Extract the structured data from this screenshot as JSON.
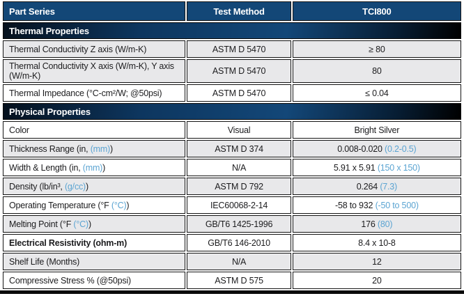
{
  "colors": {
    "header_blue": "#134777",
    "section_bar_blue": "#134778",
    "row_alt_gray": "#e8e8ea",
    "unit_blue": "#5ba4d2",
    "border_black": "#141414"
  },
  "header": {
    "part_series": "Part Series",
    "test_method": "Test Method",
    "product": "TCI800"
  },
  "sections": [
    {
      "title": "Thermal Properties",
      "rows": [
        {
          "p1": "Thermal Conductivity Z axis (W/m-K)",
          "p2": "",
          "p3": "",
          "method": "ASTM D 5470",
          "v1": "≥ 80",
          "v2": ""
        },
        {
          "p1": "Thermal Conductivity X axis (W/m-K), Y axis (W/m-K)",
          "p2": "",
          "p3": "",
          "method": "ASTM D 5470",
          "v1": "80",
          "v2": ""
        },
        {
          "p1": "Thermal Impedance (°C-cm²/W; @50psi)",
          "p2": "",
          "p3": "",
          "method": "ASTM D 5470",
          "v1": "≤ 0.04",
          "v2": ""
        }
      ]
    },
    {
      "title": "Physical Properties",
      "rows": [
        {
          "p1": "Color",
          "p2": "",
          "p3": "",
          "method": "Visual",
          "v1": "Bright Silver",
          "v2": ""
        },
        {
          "p1": "Thickness Range (in, ",
          "p2": "(mm)",
          "p3": ")",
          "method": "ASTM D 374",
          "v1": "0.008-0.020 ",
          "v2": "(0.2-0.5)"
        },
        {
          "p1": "Width & Length (in, ",
          "p2": "(mm)",
          "p3": ")",
          "method": "N/A",
          "v1": "5.91 x 5.91 ",
          "v2": "(150 x 150)"
        },
        {
          "p1": "Density (lb/in³, ",
          "p2": "(g/cc)",
          "p3": ")",
          "method": "ASTM D 792",
          "v1": "0.264 ",
          "v2": "(7.3)"
        },
        {
          "p1": "Operating Temperature (°F ",
          "p2": "(°C)",
          "p3": ")",
          "method": "IEC60068-2-14",
          "v1": "-58 to 932 ",
          "v2": "(-50 to 500)"
        },
        {
          "p1": "Melting Point (°F ",
          "p2": "(°C)",
          "p3": ")",
          "method": "GB/T6 1425-1996",
          "v1": "176 ",
          "v2": "(80)"
        },
        {
          "p1": "Electrical Resistivity (ohm-m)",
          "p2": "",
          "p3": "",
          "method": "GB/T6 146-2010",
          "v1": "8.4 x 10-8",
          "v2": ""
        },
        {
          "p1": "Shelf Life (Months)",
          "p2": "",
          "p3": "",
          "method": "N/A",
          "v1": "12",
          "v2": ""
        },
        {
          "p1": "Compressive Stress % (@50psi)",
          "p2": "",
          "p3": "",
          "method": "ASTM D 575",
          "v1": "20",
          "v2": ""
        }
      ]
    }
  ]
}
